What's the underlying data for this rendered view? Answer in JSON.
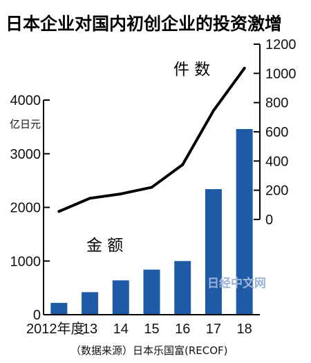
{
  "chart_data": {
    "type": "bar+line",
    "title": "日本企业对国内初创企业的投资激增",
    "categories": [
      "2012年度",
      "13",
      "14",
      "15",
      "16",
      "17",
      "18"
    ],
    "bar_series": {
      "name": "金 额",
      "unit": "亿日元",
      "values": [
        220,
        420,
        640,
        840,
        1000,
        2340,
        3460
      ],
      "ylim": [
        0,
        4000
      ],
      "yticks": [
        0,
        1000,
        2000,
        3000,
        4000
      ],
      "color": "#1f5aa6"
    },
    "line_series": {
      "name": "件 数",
      "values": [
        55,
        145,
        175,
        220,
        375,
        745,
        1035
      ],
      "ylim": [
        0,
        1200
      ],
      "yticks": [
        0,
        200,
        400,
        600,
        800,
        1000,
        1200
      ],
      "color": "#000000"
    },
    "source": "（数据来源）日本乐国富(RECOF)",
    "watermark": "日经中文网"
  }
}
